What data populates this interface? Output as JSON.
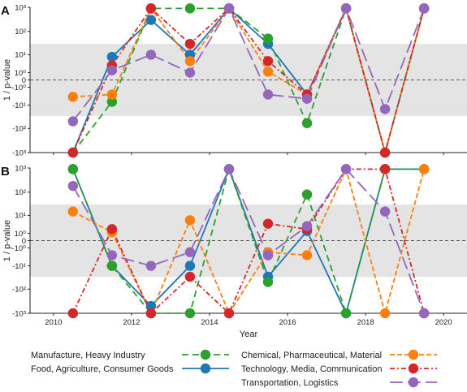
{
  "chart_data": {
    "type": "line",
    "xlabel": "Year",
    "ylabel": "1 / p-value",
    "x_ticks": [
      2010,
      2012,
      2014,
      2016,
      2018,
      2020
    ],
    "y_ticks": [
      "10³",
      "10²",
      "10¹",
      "10⁰",
      "0",
      "-10⁰",
      "-10¹",
      "-10²",
      "-10³"
    ],
    "y_scale": "symlog",
    "ylim": [
      -1000,
      1000
    ],
    "xlim": [
      2009.4,
      2020.6
    ],
    "shaded_band": [
      -30,
      30
    ],
    "zero_line": "dashed",
    "legend_position": "bottom",
    "series": [
      {
        "name": "Food, Agriculture, Consumer Goods",
        "color": "#1f77b4",
        "dash": "solid"
      },
      {
        "name": "Manufacture, Heavy Industry",
        "color": "#2ca02c",
        "dash": "8,5"
      },
      {
        "name": "Chemical, Pharmaceutical, Material",
        "color": "#ff7f0e",
        "dash": "6,3"
      },
      {
        "name": "Technology, Media, Communication",
        "color": "#d62728",
        "dash": "6,3,2,3"
      },
      {
        "name": "Transportation, Logistics",
        "color": "#9467bd",
        "dash": "16,6"
      }
    ],
    "panels": [
      {
        "label": "A",
        "x": [
          2010.5,
          2011.5,
          2012.5,
          2013.5,
          2014.5,
          2015.5,
          2016.5,
          2017.5,
          2018.5,
          2019.5
        ],
        "values": [
          [
            -1000,
            8,
            300,
            10,
            900,
            30,
            -3,
            900,
            -1000,
            900
          ],
          [
            -1000,
            -7,
            900,
            900,
            900,
            50,
            -60,
            900,
            -1000,
            900
          ],
          [
            -4,
            -3,
            900,
            5,
            900,
            1.2,
            -3,
            900,
            -1000,
            900
          ],
          [
            -1000,
            3,
            900,
            30,
            900,
            5,
            -3,
            900,
            -1000,
            900
          ],
          [
            -50,
            1.5,
            10,
            1,
            900,
            -3,
            -5,
            900,
            -15,
            900
          ]
        ]
      },
      {
        "label": "B",
        "x": [
          2010.5,
          2011.5,
          2012.5,
          2013.5,
          2014.5,
          2015.5,
          2016.5,
          2017.5,
          2018.5,
          2019.5
        ],
        "values": [
          [
            900,
            -10,
            -500,
            -10,
            900,
            -30,
            1.5,
            -1000,
            900,
            900
          ],
          [
            900,
            -10,
            -1000,
            -1000,
            900,
            -50,
            80,
            -1000,
            900,
            900
          ],
          [
            15,
            1.2,
            -1000,
            6,
            -1000,
            -2,
            -3,
            900,
            -1000,
            900
          ],
          [
            -1000,
            2,
            -1000,
            -30,
            -1000,
            4,
            2,
            900,
            900,
            -1000
          ],
          [
            180,
            -3,
            -10,
            -2,
            900,
            -3,
            3,
            900,
            15,
            -1000
          ]
        ]
      }
    ],
    "legend_order": [
      1,
      0,
      2,
      3,
      4
    ]
  }
}
